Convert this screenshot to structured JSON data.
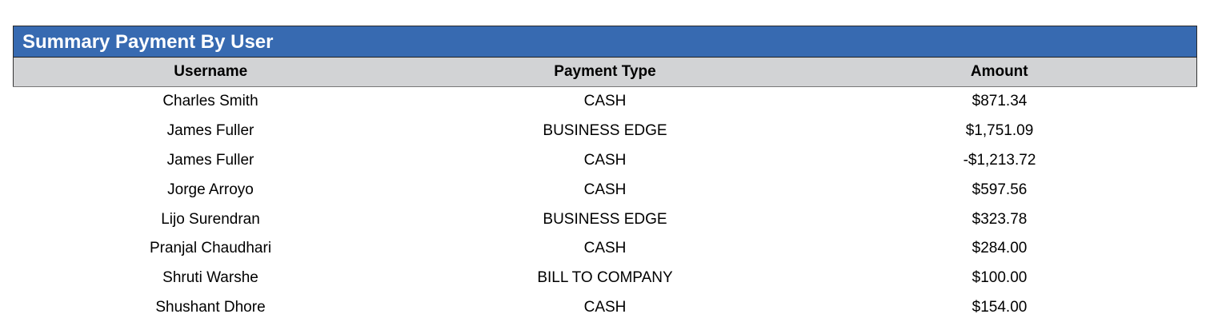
{
  "report": {
    "title": "Summary Payment By User",
    "columns": [
      "Username",
      "Payment Type",
      "Amount"
    ],
    "rows": [
      [
        "Charles Smith",
        "CASH",
        "$871.34"
      ],
      [
        "James Fuller",
        "BUSINESS EDGE",
        "$1,751.09"
      ],
      [
        "James Fuller",
        "CASH",
        "-$1,213.72"
      ],
      [
        "Jorge Arroyo",
        "CASH",
        "$597.56"
      ],
      [
        "Lijo Surendran",
        "BUSINESS EDGE",
        "$323.78"
      ],
      [
        "Pranjal Chaudhari",
        "CASH",
        "$284.00"
      ],
      [
        "Shruti Warshe",
        "BILL TO COMPANY",
        "$100.00"
      ],
      [
        "Shushant Dhore",
        "CASH",
        "$154.00"
      ]
    ],
    "colors": {
      "title_bg": "#376ab1",
      "header_bg": "#d2d3d5"
    }
  }
}
